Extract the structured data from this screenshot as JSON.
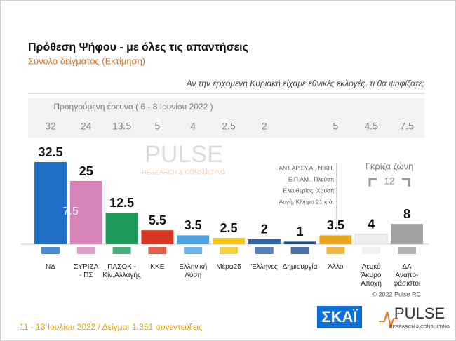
{
  "chart_data": {
    "type": "bar",
    "title": "Πρόθεση Ψήφου - με όλες τις απαντήσεις",
    "subtitle": "Σύνολο δείγματος   (Εκτίμηση)",
    "question": "Αν την ερχόμενη Κυριακή είχαμε εθνικές εκλογές, τι θα ψηφίζατε;",
    "previous_label": "Προηγούμενη έρευνα  ( 6 - 8 Ιουνίου  2022 )",
    "categories": [
      [
        "ΝΔ"
      ],
      [
        "ΣΥΡΙΖΑ",
        "- ΠΣ"
      ],
      [
        "ΠΑΣΟΚ -",
        "Κίν.Αλλαγής"
      ],
      [
        "ΚΚΕ"
      ],
      [
        "Ελληνική",
        "Λύση"
      ],
      [
        "Μέρα25"
      ],
      [
        "Έλληνες"
      ],
      [
        "Δημιουργία"
      ],
      [
        "Άλλο"
      ],
      [
        "Λευκό",
        "Άκυρο",
        "Αποχή"
      ],
      [
        "ΔΑ",
        "Αναπο-",
        "φάσιστοι"
      ]
    ],
    "values": [
      32.5,
      25,
      12.5,
      5.5,
      3.5,
      2.5,
      2,
      1,
      3.5,
      4,
      8
    ],
    "colors": [
      "#1f6fc6",
      "#d684b8",
      "#1e9a5c",
      "#d9381e",
      "#4ba3e3",
      "#f3c316",
      "#2f62ad",
      "#1c4f8c",
      "#e8a51a",
      "#eeeeee",
      "#a0a0a0"
    ],
    "previous_values": [
      32,
      24,
      13.5,
      5,
      4,
      2.5,
      2,
      null,
      5,
      4.5,
      7.5
    ],
    "syriza_overlay": 7.5,
    "gray_zone": {
      "label": "Γκρίζα ζώνη",
      "value": 12
    },
    "other_note": [
      "ΑΝΤ.ΑΡ.ΣΥ.Α., ΝΙΚΗ,",
      "Ε.Π.ΑΜ., Πλεύση",
      "Ελευθερίας, Χρυσή",
      "Αυγή, Κίνημα 21  κ.ά."
    ],
    "copyright": "© 2022 Pulse RC",
    "footer": "11 - 13  Ιουλίου  2022  /  Δείγμα:  1.351  συνεντεύξεις",
    "logos": {
      "skai": "ΣΚΑΪ",
      "pulse": "PULSE",
      "pulse_sub": "RESEARCH & CONSULTING"
    }
  }
}
